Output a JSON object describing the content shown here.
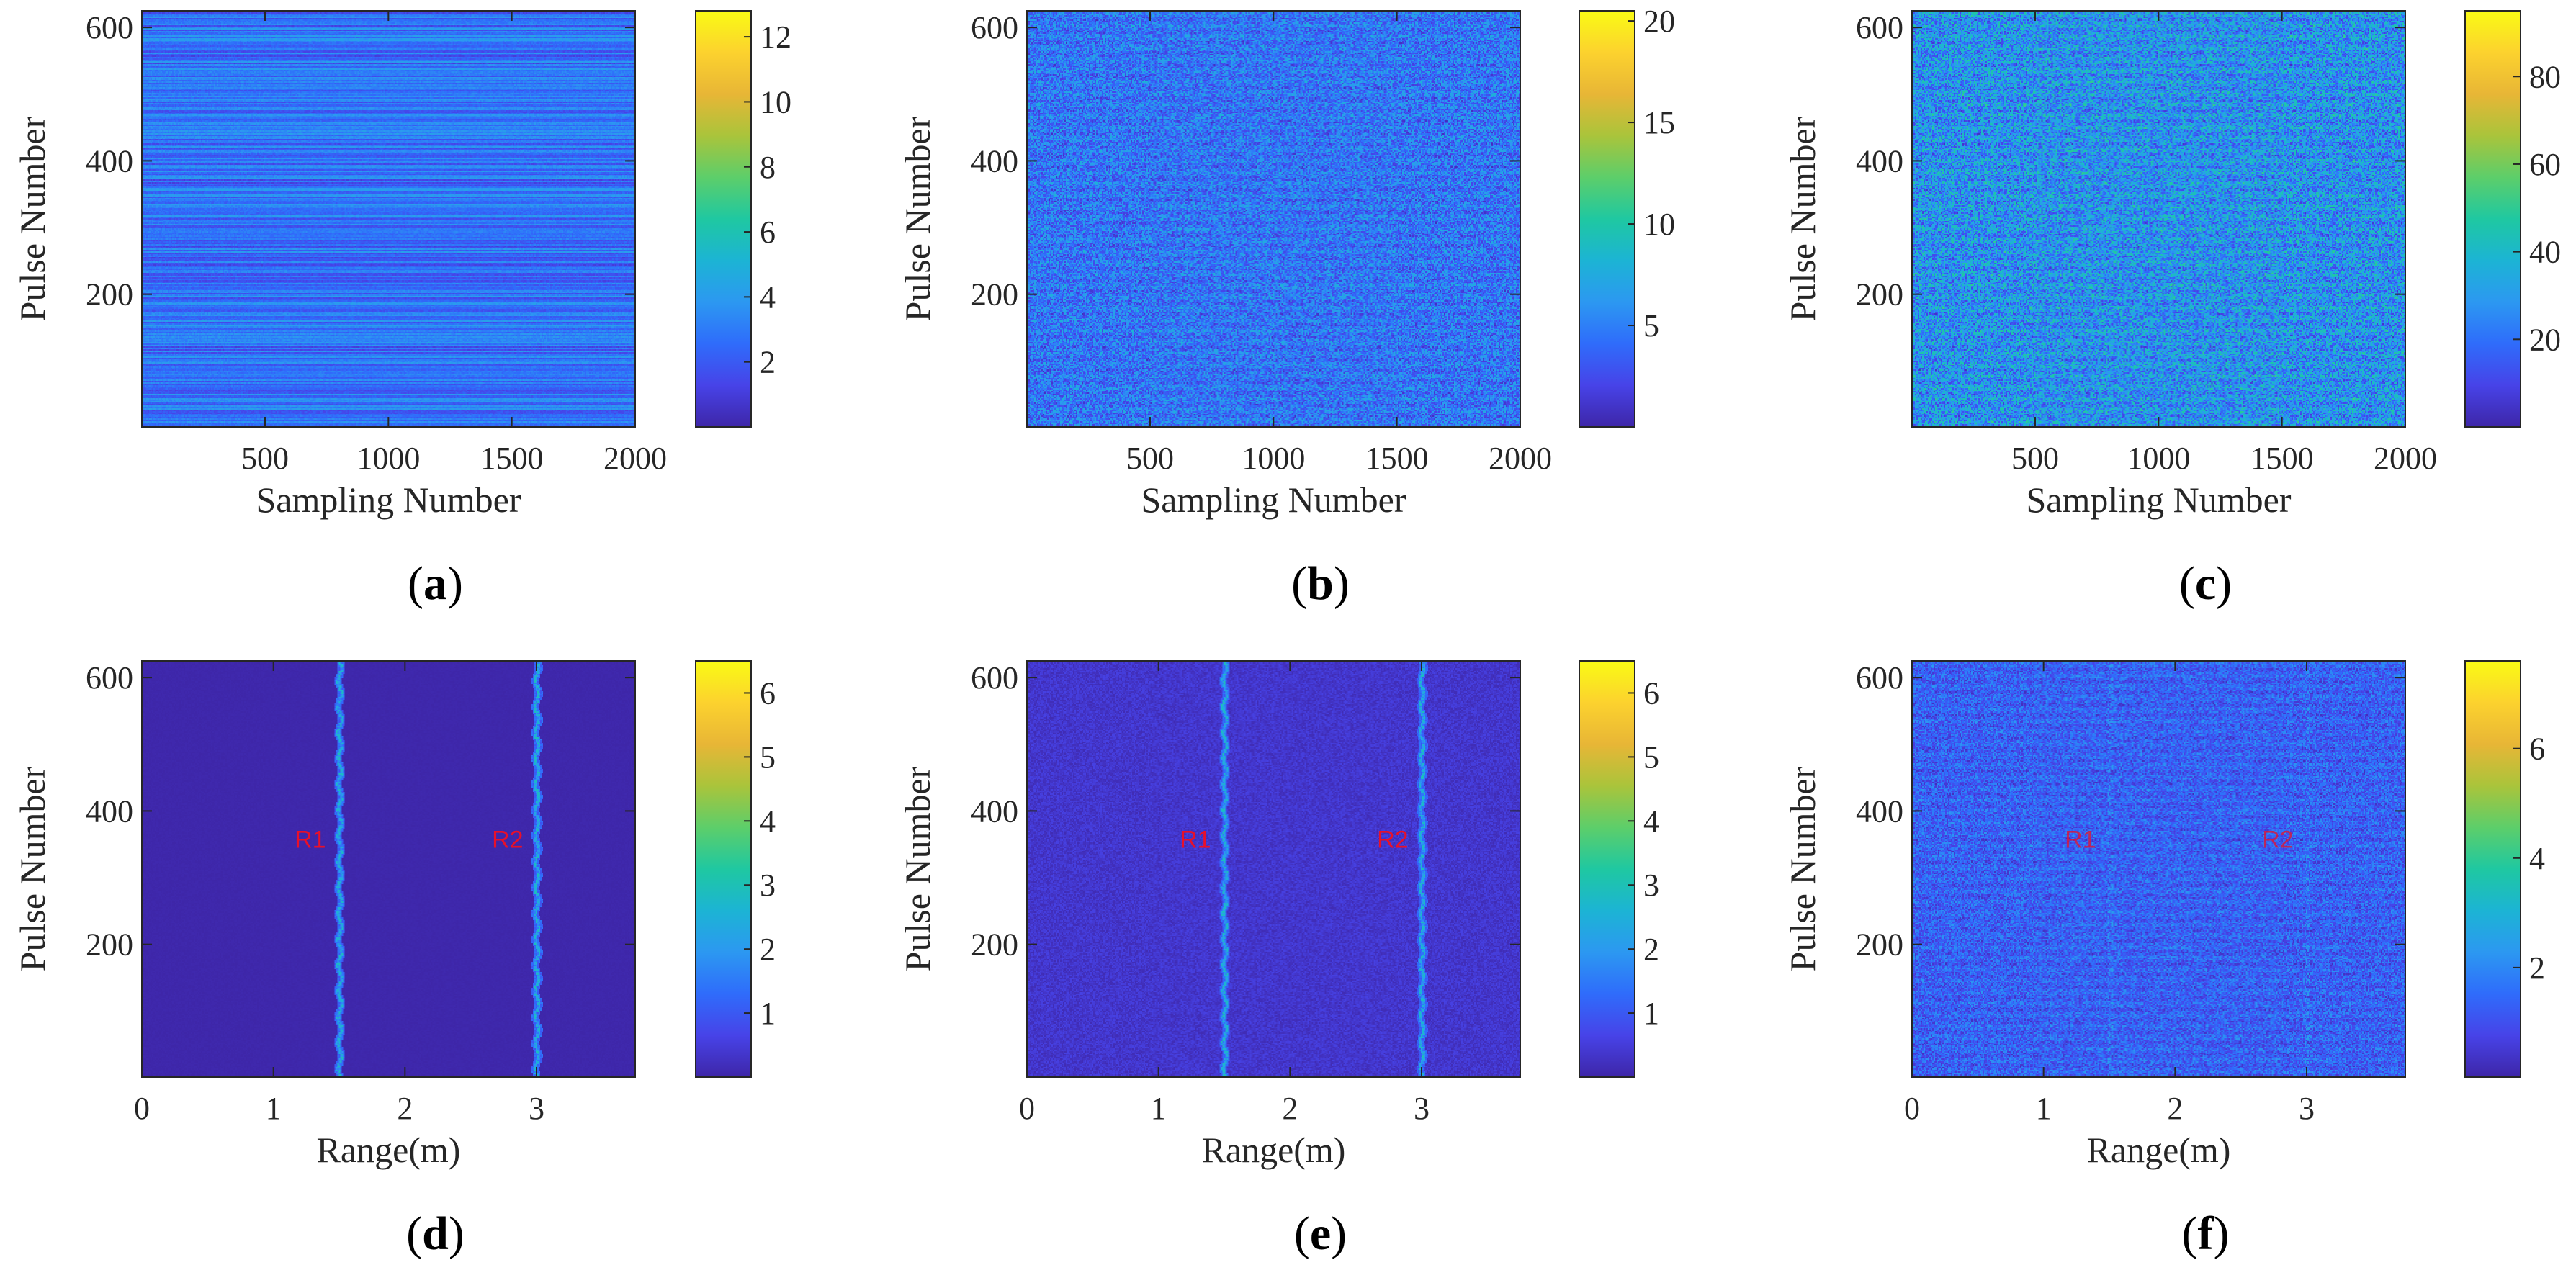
{
  "chart_data": [
    {
      "type": "heatmap",
      "caption_letter": "a",
      "xlabel": "Sampling Number",
      "ylabel": "Pulse Number",
      "x_tick_labels": [
        "500",
        "1000",
        "1500",
        "2000"
      ],
      "x_ticks": [
        500,
        1000,
        1500,
        2000
      ],
      "xlim": [
        1,
        2000
      ],
      "y_tick_labels": [
        "200",
        "400",
        "600"
      ],
      "y_ticks": [
        200,
        400,
        600
      ],
      "ylim": [
        1,
        625
      ],
      "colorbar_tick_labels": [
        "2",
        "4",
        "6",
        "8",
        "10",
        "12"
      ],
      "colorbar_ticks": [
        2,
        4,
        6,
        8,
        10,
        12
      ],
      "colorbar_range": [
        0,
        12.8
      ],
      "pattern": "horizontal-bands",
      "mean_value": 3.0,
      "annotations": []
    },
    {
      "type": "heatmap",
      "caption_letter": "b",
      "xlabel": "Sampling Number",
      "ylabel": "Pulse Number",
      "x_tick_labels": [
        "500",
        "1000",
        "1500",
        "2000"
      ],
      "x_ticks": [
        500,
        1000,
        1500,
        2000
      ],
      "xlim": [
        1,
        2000
      ],
      "y_tick_labels": [
        "200",
        "400",
        "600"
      ],
      "y_ticks": [
        200,
        400,
        600
      ],
      "ylim": [
        1,
        625
      ],
      "colorbar_tick_labels": [
        "5",
        "10",
        "15",
        "20"
      ],
      "colorbar_ticks": [
        5,
        10,
        15,
        20
      ],
      "colorbar_range": [
        0,
        20.5
      ],
      "pattern": "noise",
      "mean_value": 4.5,
      "annotations": []
    },
    {
      "type": "heatmap",
      "caption_letter": "c",
      "xlabel": "Sampling Number",
      "ylabel": "Pulse Number",
      "x_tick_labels": [
        "500",
        "1000",
        "1500",
        "2000"
      ],
      "x_ticks": [
        500,
        1000,
        1500,
        2000
      ],
      "xlim": [
        1,
        2000
      ],
      "y_tick_labels": [
        "200",
        "400",
        "600"
      ],
      "y_ticks": [
        200,
        400,
        600
      ],
      "ylim": [
        1,
        625
      ],
      "colorbar_tick_labels": [
        "20",
        "40",
        "60",
        "80"
      ],
      "colorbar_ticks": [
        20,
        40,
        60,
        80
      ],
      "colorbar_range": [
        0,
        95
      ],
      "pattern": "noise",
      "mean_value": 28,
      "annotations": []
    },
    {
      "type": "heatmap",
      "caption_letter": "d",
      "xlabel": "Range(m)",
      "ylabel": "Pulse Number",
      "x_tick_labels": [
        "0",
        "1",
        "2",
        "3"
      ],
      "x_ticks": [
        0,
        1,
        2,
        3
      ],
      "xlim": [
        0,
        3.75
      ],
      "y_tick_labels": [
        "200",
        "400",
        "600"
      ],
      "y_ticks": [
        200,
        400,
        600
      ],
      "ylim": [
        1,
        625
      ],
      "colorbar_tick_labels": [
        "1",
        "2",
        "3",
        "4",
        "5",
        "6"
      ],
      "colorbar_ticks": [
        1,
        2,
        3,
        4,
        5,
        6
      ],
      "colorbar_range": [
        0,
        6.5
      ],
      "pattern": "range-lines",
      "target_ranges": [
        1.5,
        3.0
      ],
      "mean_value": 0.1,
      "annotations": [
        {
          "text": "R1",
          "x": 1.28,
          "y": 345
        },
        {
          "text": "R2",
          "x": 2.78,
          "y": 345
        }
      ]
    },
    {
      "type": "heatmap",
      "caption_letter": "e",
      "xlabel": "Range(m)",
      "ylabel": "Pulse Number",
      "x_tick_labels": [
        "0",
        "1",
        "2",
        "3"
      ],
      "x_ticks": [
        0,
        1,
        2,
        3
      ],
      "xlim": [
        0,
        3.75
      ],
      "y_tick_labels": [
        "200",
        "400",
        "600"
      ],
      "y_ticks": [
        200,
        400,
        600
      ],
      "ylim": [
        1,
        625
      ],
      "colorbar_tick_labels": [
        "1",
        "2",
        "3",
        "4",
        "5",
        "6"
      ],
      "colorbar_ticks": [
        1,
        2,
        3,
        4,
        5,
        6
      ],
      "colorbar_range": [
        0,
        6.5
      ],
      "pattern": "range-lines-noise",
      "target_ranges": [
        1.5,
        3.0
      ],
      "mean_value": 0.3,
      "annotations": [
        {
          "text": "R1",
          "x": 1.28,
          "y": 345
        },
        {
          "text": "R2",
          "x": 2.78,
          "y": 345
        }
      ]
    },
    {
      "type": "heatmap",
      "caption_letter": "f",
      "xlabel": "Range(m)",
      "ylabel": "Pulse Number",
      "x_tick_labels": [
        "0",
        "1",
        "2",
        "3"
      ],
      "x_ticks": [
        0,
        1,
        2,
        3
      ],
      "xlim": [
        0,
        3.75
      ],
      "y_tick_labels": [
        "200",
        "400",
        "600"
      ],
      "y_ticks": [
        200,
        400,
        600
      ],
      "ylim": [
        1,
        625
      ],
      "colorbar_tick_labels": [
        "2",
        "4",
        "6"
      ],
      "colorbar_ticks": [
        2,
        4,
        6
      ],
      "colorbar_range": [
        0,
        7.6
      ],
      "pattern": "noise",
      "target_ranges": [
        1.5,
        3.0
      ],
      "mean_value": 1.3,
      "annotations": [
        {
          "text": "R1",
          "x": 1.28,
          "y": 345
        },
        {
          "text": "R2",
          "x": 2.78,
          "y": 345
        }
      ]
    }
  ],
  "colormap": [
    "#3e26a8",
    "#4743e8",
    "#2f6cfb",
    "#2c98f1",
    "#1cb4d4",
    "#1fc8a1",
    "#5dce6a",
    "#aac43b",
    "#e8b636",
    "#fcd22e",
    "#f9fb14"
  ]
}
